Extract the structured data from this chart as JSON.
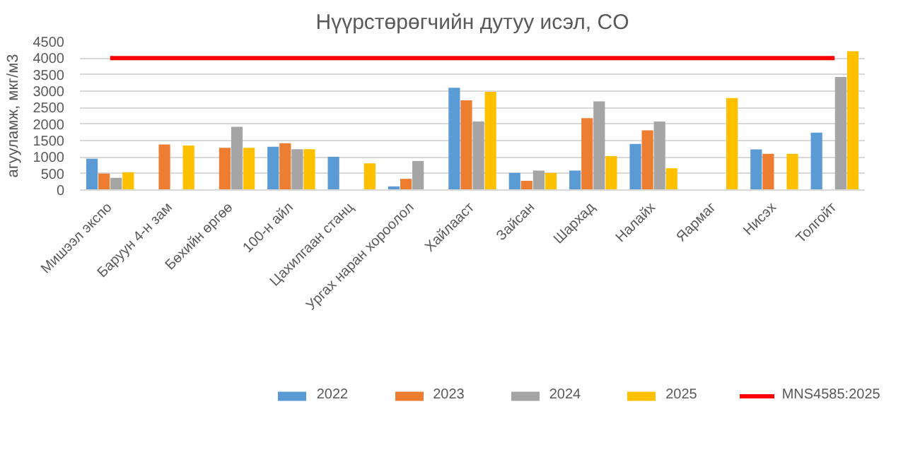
{
  "chart_data": {
    "type": "bar",
    "title": "Нүүрстөрөгчийн дутуу исэл, CO",
    "ylabel": "агууламж, мкг/м3",
    "categories": [
      "Мишээл экспо",
      "Баруун 4-н зам",
      "Бөхийн өргөө",
      "100-н айл",
      "Цахилгаан станц",
      "Ургах наран хороолол",
      "Хайлааст",
      "Зайсан",
      "Шархад",
      "Налайх",
      "Яармаг",
      "Нисэх",
      "Толгойт"
    ],
    "series": [
      {
        "name": "2022",
        "color": "#5b9bd5",
        "values": [
          950,
          null,
          null,
          1310,
          1010,
          110,
          3100,
          520,
          590,
          1400,
          null,
          1230,
          1740
        ]
      },
      {
        "name": "2023",
        "color": "#ed7d31",
        "values": [
          500,
          1380,
          1280,
          1420,
          null,
          340,
          2720,
          280,
          2180,
          1810,
          null,
          1100,
          null
        ]
      },
      {
        "name": "2024",
        "color": "#a5a5a5",
        "values": [
          370,
          null,
          1920,
          1240,
          null,
          880,
          2080,
          590,
          2690,
          2080,
          null,
          null,
          3430
        ]
      },
      {
        "name": "2025",
        "color": "#ffc000",
        "values": [
          540,
          1350,
          1280,
          1240,
          810,
          null,
          2980,
          520,
          1030,
          660,
          2790,
          1100,
          4210
        ]
      },
      {
        "name": "MNS4585:2025",
        "color": "#ff0000",
        "type": "line",
        "values": [
          4000,
          4000,
          4000,
          4000,
          4000,
          4000,
          4000,
          4000,
          4000,
          4000,
          4000,
          4000,
          4000
        ]
      }
    ],
    "ylim": [
      0,
      4500
    ],
    "yticks": [
      0,
      500,
      1000,
      1500,
      2000,
      2500,
      3000,
      3500,
      4000,
      4500
    ],
    "grid": "y",
    "legend": "bottom"
  }
}
